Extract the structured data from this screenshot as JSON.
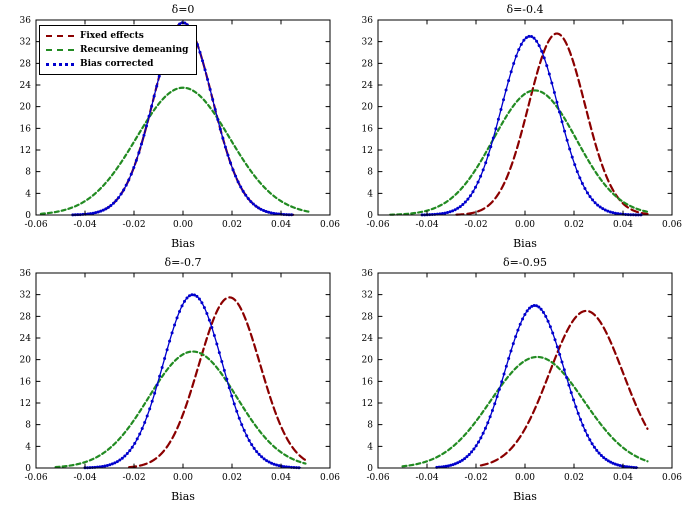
{
  "legend": {
    "items": [
      {
        "label": "Fixed effects",
        "style": "dashed",
        "color": "#8B0000"
      },
      {
        "label": "Recursive demeaning",
        "style": "dashed",
        "color": "#228B22"
      },
      {
        "label": "Bias corrected",
        "style": "marker",
        "color": "#0000CD"
      }
    ]
  },
  "axes": {
    "xlabel": "Bias",
    "xtick_labels": [
      "-0.06",
      "-0.04",
      "-0.02",
      "0.00",
      "0.02",
      "0.04",
      "0.06"
    ],
    "ytick_labels": [
      "0",
      "4",
      "8",
      "12",
      "16",
      "20",
      "24",
      "28",
      "32",
      "36"
    ]
  },
  "chart_data": [
    {
      "type": "line",
      "title": "δ=0",
      "xlabel": "Bias",
      "xlim": [
        -0.06,
        0.06
      ],
      "ylim": [
        0,
        36
      ],
      "xticks": [
        -0.06,
        -0.04,
        -0.02,
        0,
        0.02,
        0.04,
        0.06
      ],
      "yticks": [
        0,
        4,
        8,
        12,
        16,
        20,
        24,
        28,
        32,
        36
      ],
      "xtick_labels": [
        "-0.06",
        "-0.04",
        "-0.02",
        "0.00",
        "0.02",
        "0.04",
        "0.06"
      ],
      "ytick_labels": [
        "0",
        "4",
        "8",
        "12",
        "16",
        "20",
        "24",
        "28",
        "32",
        "36"
      ],
      "grid": false,
      "legend_visible": true,
      "series": [
        {
          "name": "Fixed effects",
          "color": "#8B0000",
          "style": "dashed",
          "dash": [
            7,
            4
          ],
          "xrange": [
            -0.045,
            0.045
          ],
          "gaussian": {
            "mean": 0.0,
            "sd": 0.012,
            "peak": 35.5
          }
        },
        {
          "name": "Recursive demeaning",
          "color": "#228B22",
          "style": "dashed",
          "dash": [
            4,
            3
          ],
          "xrange": [
            -0.058,
            0.052
          ],
          "gaussian": {
            "mean": 0.0,
            "sd": 0.019,
            "peak": 23.5
          }
        },
        {
          "name": "Bias corrected",
          "color": "#0000CD",
          "style": "marker",
          "xrange": [
            -0.045,
            0.045
          ],
          "gaussian": {
            "mean": 0.0,
            "sd": 0.012,
            "peak": 35.5
          }
        }
      ]
    },
    {
      "type": "line",
      "title": "δ=-0.4",
      "xlabel": "Bias",
      "xlim": [
        -0.06,
        0.06
      ],
      "ylim": [
        0,
        36
      ],
      "xticks": [
        -0.06,
        -0.04,
        -0.02,
        0,
        0.02,
        0.04,
        0.06
      ],
      "yticks": [
        0,
        4,
        8,
        12,
        16,
        20,
        24,
        28,
        32,
        36
      ],
      "xtick_labels": [
        "-0.06",
        "-0.04",
        "-0.02",
        "0.00",
        "0.02",
        "0.04",
        "0.06"
      ],
      "ytick_labels": [
        "0",
        "4",
        "8",
        "12",
        "16",
        "20",
        "24",
        "28",
        "32",
        "36"
      ],
      "grid": false,
      "legend_visible": false,
      "series": [
        {
          "name": "Fixed effects",
          "color": "#8B0000",
          "style": "dashed",
          "dash": [
            7,
            4
          ],
          "xrange": [
            -0.028,
            0.05
          ],
          "gaussian": {
            "mean": 0.013,
            "sd": 0.0115,
            "peak": 33.5
          }
        },
        {
          "name": "Recursive demeaning",
          "color": "#228B22",
          "style": "dashed",
          "dash": [
            4,
            3
          ],
          "xrange": [
            -0.055,
            0.05
          ],
          "gaussian": {
            "mean": 0.004,
            "sd": 0.017,
            "peak": 23
          }
        },
        {
          "name": "Bias corrected",
          "color": "#0000CD",
          "style": "marker",
          "xrange": [
            -0.042,
            0.048
          ],
          "gaussian": {
            "mean": 0.002,
            "sd": 0.0115,
            "peak": 33
          }
        }
      ]
    },
    {
      "type": "line",
      "title": "δ=-0.7",
      "xlabel": "Bias",
      "xlim": [
        -0.06,
        0.06
      ],
      "ylim": [
        0,
        36
      ],
      "xticks": [
        -0.06,
        -0.04,
        -0.02,
        0,
        0.02,
        0.04,
        0.06
      ],
      "yticks": [
        0,
        4,
        8,
        12,
        16,
        20,
        24,
        28,
        32,
        36
      ],
      "xtick_labels": [
        "-0.06",
        "-0.04",
        "-0.02",
        "0.00",
        "0.02",
        "0.04",
        "0.06"
      ],
      "ytick_labels": [
        "0",
        "4",
        "8",
        "12",
        "16",
        "20",
        "24",
        "28",
        "32",
        "36"
      ],
      "grid": false,
      "legend_visible": false,
      "series": [
        {
          "name": "Fixed effects",
          "color": "#8B0000",
          "style": "dashed",
          "dash": [
            7,
            4
          ],
          "xrange": [
            -0.022,
            0.05
          ],
          "gaussian": {
            "mean": 0.019,
            "sd": 0.0125,
            "peak": 31.5
          }
        },
        {
          "name": "Recursive demeaning",
          "color": "#228B22",
          "style": "dashed",
          "dash": [
            4,
            3
          ],
          "xrange": [
            -0.052,
            0.05
          ],
          "gaussian": {
            "mean": 0.004,
            "sd": 0.018,
            "peak": 21.5
          }
        },
        {
          "name": "Bias corrected",
          "color": "#0000CD",
          "style": "marker",
          "xrange": [
            -0.04,
            0.048
          ],
          "gaussian": {
            "mean": 0.004,
            "sd": 0.012,
            "peak": 32
          }
        }
      ]
    },
    {
      "type": "line",
      "title": "δ=-0.95",
      "xlabel": "Bias",
      "xlim": [
        -0.06,
        0.06
      ],
      "ylim": [
        0,
        36
      ],
      "xticks": [
        -0.06,
        -0.04,
        -0.02,
        0,
        0.02,
        0.04,
        0.06
      ],
      "yticks": [
        0,
        4,
        8,
        12,
        16,
        20,
        24,
        28,
        32,
        36
      ],
      "xtick_labels": [
        "-0.06",
        "-0.04",
        "-0.02",
        "0.00",
        "0.02",
        "0.04",
        "0.06"
      ],
      "ytick_labels": [
        "0",
        "4",
        "8",
        "12",
        "16",
        "20",
        "24",
        "28",
        "32",
        "36"
      ],
      "grid": false,
      "legend_visible": false,
      "series": [
        {
          "name": "Fixed effects",
          "color": "#8B0000",
          "style": "dashed",
          "dash": [
            7,
            4
          ],
          "xrange": [
            -0.018,
            0.05
          ],
          "gaussian": {
            "mean": 0.025,
            "sd": 0.015,
            "peak": 29
          }
        },
        {
          "name": "Recursive demeaning",
          "color": "#228B22",
          "style": "dashed",
          "dash": [
            4,
            3
          ],
          "xrange": [
            -0.05,
            0.05
          ],
          "gaussian": {
            "mean": 0.005,
            "sd": 0.019,
            "peak": 20.5
          }
        },
        {
          "name": "Bias corrected",
          "color": "#0000CD",
          "style": "marker",
          "xrange": [
            -0.036,
            0.046
          ],
          "gaussian": {
            "mean": 0.004,
            "sd": 0.012,
            "peak": 30
          }
        }
      ]
    }
  ]
}
